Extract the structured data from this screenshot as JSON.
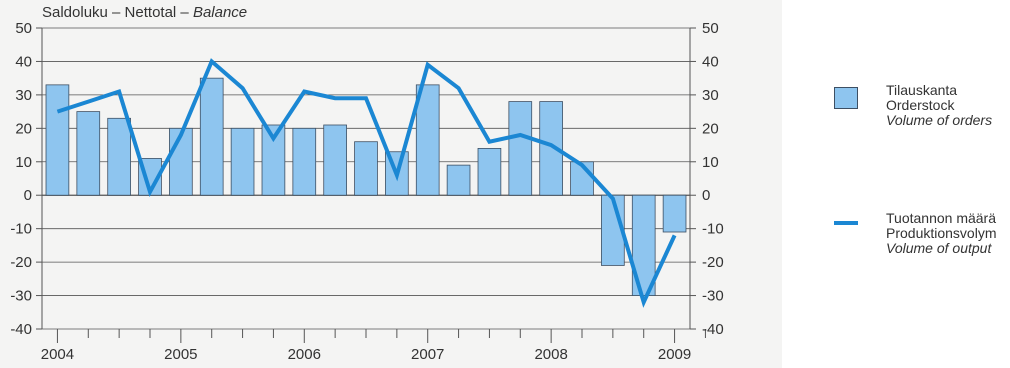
{
  "chart_data": {
    "type": "bar",
    "title": "Saldoluku – Nettotal – ",
    "title_italic": "Balance",
    "ylim": [
      -40,
      50
    ],
    "yticks": [
      50,
      40,
      30,
      20,
      10,
      0,
      -10,
      -20,
      -30,
      -40
    ],
    "ytick_labels": [
      "50",
      "40",
      "30",
      "20",
      "10",
      "0",
      "-10",
      "-20",
      "-30",
      "-40"
    ],
    "x_year_labels": [
      "2004",
      "2005",
      "2006",
      "2007",
      "2008",
      "2009"
    ],
    "grid": true,
    "legend_position": "right",
    "series": [
      {
        "name": "Tilauskanta",
        "name_2": "Orderstock",
        "name_3": "Volume of orders",
        "kind": "bar",
        "color": "#8ec5ef",
        "values": [
          33,
          25,
          23,
          11,
          20,
          35,
          20,
          21,
          20,
          21,
          16,
          13,
          33,
          9,
          14,
          28,
          28,
          10,
          -21,
          -30,
          -11
        ]
      },
      {
        "name": "Tuotannon määrä",
        "name_2": "Produktionsvolym",
        "name_3": "Volume of output",
        "kind": "line",
        "color": "#1b87d3",
        "values": [
          25,
          28,
          31,
          1,
          18,
          40,
          32,
          17,
          31,
          29,
          29,
          6,
          39,
          32,
          16,
          18,
          15,
          9,
          -1,
          -32,
          -12
        ]
      }
    ]
  }
}
